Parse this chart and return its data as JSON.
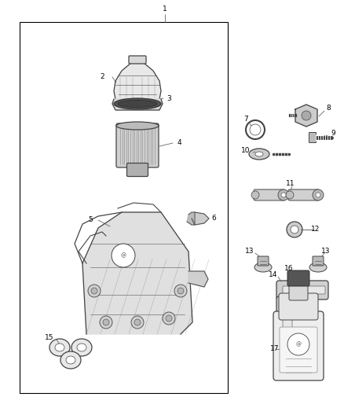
{
  "bg_color": "#ffffff",
  "box_color": "#000000",
  "fig_width": 4.38,
  "fig_height": 5.33,
  "dpi": 100,
  "line_color": "#444444",
  "thin": 0.5,
  "med": 0.9,
  "thick": 1.5
}
